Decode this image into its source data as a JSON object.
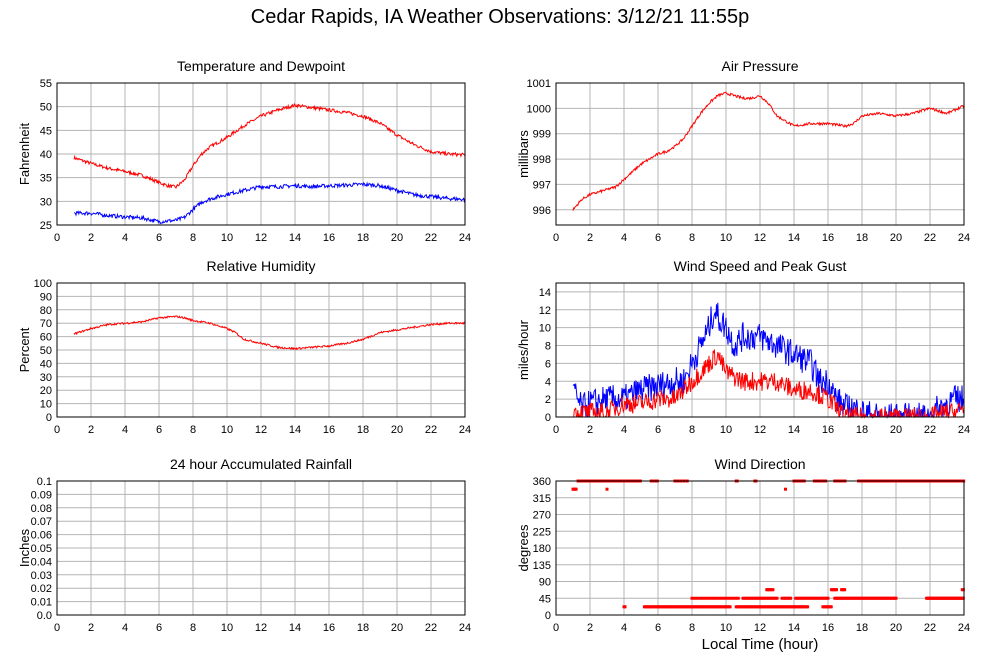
{
  "title": "Cedar Rapids, IA Weather Observations: 3/12/21 11:55p",
  "xaxis_label": "Local Time (hour)",
  "colors": {
    "red": "#ff0000",
    "blue": "#0000ff",
    "grid": "#b4b4b4"
  },
  "chart_data": [
    {
      "id": "temp",
      "type": "line",
      "title": "Temperature and Dewpoint",
      "ylabel": "Fahrenheit",
      "xlim": [
        0,
        24
      ],
      "ylim": [
        25,
        55
      ],
      "xticks": [
        2,
        4,
        6,
        8,
        10,
        12,
        14,
        16,
        18,
        20,
        22,
        24
      ],
      "yticks": [
        25,
        30,
        35,
        40,
        45,
        50,
        55
      ],
      "grid": true,
      "series": [
        {
          "color": "red",
          "noise": 0.35,
          "x": [
            1,
            2,
            3,
            4,
            5,
            6,
            6.5,
            7,
            7.5,
            8,
            8.5,
            9,
            10,
            11,
            12,
            13,
            14,
            15,
            16,
            17,
            18,
            19,
            20,
            21,
            22,
            23,
            24
          ],
          "y": [
            39.2,
            38,
            37,
            36.3,
            35.5,
            34,
            33.3,
            33,
            34.5,
            37.5,
            40,
            41.5,
            43.5,
            46,
            48,
            49.3,
            50.3,
            49.8,
            49.3,
            48.8,
            48,
            46.5,
            44,
            42,
            40.5,
            40,
            39.8
          ]
        },
        {
          "color": "blue",
          "noise": 0.4,
          "x": [
            1,
            2,
            3,
            4,
            5,
            6,
            7,
            7.5,
            8,
            8.5,
            9,
            10,
            11,
            12,
            13,
            14,
            15,
            16,
            17,
            18,
            19,
            20,
            21,
            22,
            23,
            24
          ],
          "y": [
            27.5,
            27.5,
            27,
            26.7,
            26.5,
            25.7,
            26,
            26.6,
            28.3,
            29.8,
            30.5,
            31.5,
            32.3,
            33.1,
            33.1,
            33.3,
            33.1,
            33.3,
            33.4,
            33.6,
            33.3,
            32.3,
            31.4,
            31,
            30.6,
            30.4
          ]
        }
      ]
    },
    {
      "id": "pressure",
      "type": "line",
      "title": "Air Pressure",
      "ylabel": "millibars",
      "xlim": [
        0,
        24
      ],
      "ylim": [
        995.4,
        1001
      ],
      "xticks": [
        2,
        4,
        6,
        8,
        10,
        12,
        14,
        16,
        18,
        20,
        22,
        24
      ],
      "yticks": [
        996,
        997,
        998,
        999,
        1000,
        1001
      ],
      "grid": true,
      "series": [
        {
          "color": "red",
          "noise": 0.05,
          "x": [
            1,
            1.5,
            2,
            3,
            3.5,
            4,
            4.5,
            5,
            6,
            6.5,
            7,
            7.5,
            8,
            8.5,
            9,
            9.5,
            10,
            10.5,
            11,
            11.5,
            12,
            12.5,
            13,
            13.5,
            14,
            15,
            16,
            17,
            17.5,
            18,
            19,
            20,
            21,
            22,
            22.5,
            23,
            24
          ],
          "y": [
            996,
            996.4,
            996.6,
            996.8,
            996.9,
            997.2,
            997.5,
            997.8,
            998.2,
            998.3,
            998.5,
            998.8,
            999.3,
            999.8,
            1000.2,
            1000.5,
            1000.6,
            1000.5,
            1000.4,
            1000.4,
            1000.5,
            1000.2,
            999.7,
            999.5,
            999.3,
            999.4,
            999.4,
            999.3,
            999.4,
            999.7,
            999.8,
            999.7,
            999.8,
            1000,
            999.9,
            999.8,
            1000.1
          ]
        }
      ]
    },
    {
      "id": "humidity",
      "type": "line",
      "title": "Relative Humidity",
      "ylabel": "Percent",
      "xlim": [
        0,
        24
      ],
      "ylim": [
        0,
        100
      ],
      "xticks": [
        2,
        4,
        6,
        8,
        10,
        12,
        14,
        16,
        18,
        20,
        22,
        24
      ],
      "yticks": [
        0,
        10,
        20,
        30,
        40,
        50,
        60,
        70,
        80,
        90,
        100
      ],
      "grid": true,
      "series": [
        {
          "color": "red",
          "noise": 0.7,
          "x": [
            1,
            2,
            3,
            4,
            5,
            6,
            7,
            7.5,
            8,
            9,
            10,
            10.5,
            11,
            12,
            13,
            14,
            15,
            16,
            17,
            18,
            19,
            20,
            21,
            22,
            23,
            24
          ],
          "y": [
            62,
            66,
            69,
            70,
            71,
            74,
            75,
            74,
            72,
            70,
            66,
            63,
            58,
            55,
            52,
            51,
            52,
            53,
            55,
            58,
            63,
            65,
            67,
            69,
            70,
            70
          ]
        }
      ]
    },
    {
      "id": "wind",
      "type": "line",
      "title": "Wind Speed and Peak Gust",
      "ylabel": "miles/hour",
      "xlim": [
        0,
        24
      ],
      "ylim": [
        0,
        15
      ],
      "xticks": [
        2,
        4,
        6,
        8,
        10,
        12,
        14,
        16,
        18,
        20,
        22,
        24
      ],
      "yticks": [
        0,
        2,
        4,
        6,
        8,
        10,
        12,
        14
      ],
      "grid": true,
      "series": [
        {
          "color": "blue",
          "jagged": 1.6,
          "x": [
            1,
            1.5,
            2,
            3,
            4,
            5,
            6,
            7,
            7.5,
            8,
            8.5,
            9,
            9.3,
            9.6,
            10,
            10.5,
            11,
            12,
            13,
            14,
            15,
            15.5,
            16,
            16.5,
            17,
            17.5,
            18,
            19,
            20,
            21,
            22,
            22.5,
            23,
            23.5,
            24
          ],
          "y": [
            3,
            1,
            1.5,
            2,
            2,
            3,
            3.5,
            4,
            4,
            6,
            8,
            10,
            12,
            11,
            10,
            8,
            9,
            9,
            8,
            7,
            6,
            4,
            4,
            2,
            1,
            1,
            0.5,
            0,
            0,
            0,
            0,
            1,
            1.5,
            2,
            2
          ]
        },
        {
          "color": "red",
          "jagged": 1.1,
          "x": [
            1,
            1.5,
            2,
            3,
            4,
            5,
            6,
            7,
            8,
            8.5,
            9,
            9.5,
            10,
            11,
            12,
            13,
            14,
            15,
            16,
            16.5,
            17,
            18,
            19,
            20,
            21,
            22,
            23,
            23.5,
            24
          ],
          "y": [
            0.5,
            0.5,
            0.5,
            0.5,
            1.5,
            1.5,
            2,
            2,
            4,
            5,
            6,
            7,
            5,
            4,
            4,
            4,
            3,
            3,
            2,
            1,
            0,
            0,
            0,
            0,
            0,
            0,
            0.5,
            0.5,
            1
          ]
        }
      ]
    },
    {
      "id": "rain",
      "type": "line",
      "title": "24 hour Accumulated Rainfall",
      "ylabel": "Inches",
      "xlim": [
        0,
        24
      ],
      "ylim": [
        0,
        0.1
      ],
      "xticks": [
        2,
        4,
        6,
        8,
        10,
        12,
        14,
        16,
        18,
        20,
        22,
        24
      ],
      "yticks": [
        0.0,
        0.01,
        0.02,
        0.03,
        0.04,
        0.05,
        0.06,
        0.07,
        0.08,
        0.09,
        0.1
      ],
      "ytick_labels": [
        "0.0",
        "0.01",
        "0.02",
        "0.03",
        "0.04",
        "0.05",
        "0.06",
        "0.07",
        "0.08",
        "0.09",
        "0.1"
      ],
      "grid": true,
      "series": [
        {
          "color": "red",
          "noise": 0,
          "x": [
            1,
            24
          ],
          "y": [
            0,
            0
          ]
        }
      ]
    },
    {
      "id": "direction",
      "type": "scatter",
      "title": "Wind Direction",
      "ylabel": "degrees",
      "xlim": [
        0,
        24
      ],
      "ylim": [
        0,
        360
      ],
      "xticks": [
        2,
        4,
        6,
        8,
        10,
        12,
        14,
        16,
        18,
        20,
        22,
        24
      ],
      "yticks": [
        0,
        45,
        90,
        135,
        180,
        225,
        270,
        315,
        360
      ],
      "grid": true,
      "series": [
        {
          "color": "red",
          "segments": [
            {
              "x0": 1.3,
              "x1": 5.0,
              "y": 360,
              "gap": 0.06
            },
            {
              "x0": 5.6,
              "x1": 6.0,
              "y": 360,
              "gap": 0.06
            },
            {
              "x0": 10.6,
              "x1": 10.7,
              "y": 360,
              "gap": 0.06
            },
            {
              "x0": 11.7,
              "x1": 11.8,
              "y": 360,
              "gap": 0.06
            },
            {
              "x0": 14.0,
              "x1": 14.6,
              "y": 360,
              "gap": 0.06
            },
            {
              "x0": 15.2,
              "x1": 15.9,
              "y": 360,
              "gap": 0.06
            },
            {
              "x0": 16.4,
              "x1": 17.0,
              "y": 360,
              "gap": 0.06
            },
            {
              "x0": 17.8,
              "x1": 24.0,
              "y": 360,
              "gap": 0.06
            },
            {
              "x0": 1.0,
              "x1": 1.2,
              "y": 338,
              "gap": 0.06
            },
            {
              "x0": 3.0,
              "x1": 3.05,
              "y": 338,
              "gap": 0.06
            },
            {
              "x0": 13.5,
              "x1": 13.55,
              "y": 338,
              "gap": 0.06
            },
            {
              "x0": 7.0,
              "x1": 7.8,
              "y": 360,
              "gap": 0.18
            },
            {
              "x0": 4.0,
              "x1": 4.1,
              "y": 22,
              "gap": 0.06
            },
            {
              "x0": 5.2,
              "x1": 10.3,
              "y": 22,
              "gap": 0.07
            },
            {
              "x0": 10.6,
              "x1": 14.8,
              "y": 22,
              "gap": 0.07
            },
            {
              "x0": 15.7,
              "x1": 16.2,
              "y": 22,
              "gap": 0.07
            },
            {
              "x0": 8.0,
              "x1": 10.8,
              "y": 45,
              "gap": 0.16
            },
            {
              "x0": 11.0,
              "x1": 13.0,
              "y": 45,
              "gap": 0.1
            },
            {
              "x0": 13.3,
              "x1": 13.8,
              "y": 45,
              "gap": 0.1
            },
            {
              "x0": 14.1,
              "x1": 16.0,
              "y": 45,
              "gap": 0.1
            },
            {
              "x0": 16.4,
              "x1": 20.0,
              "y": 45,
              "gap": 0.08
            },
            {
              "x0": 21.8,
              "x1": 24.0,
              "y": 45,
              "gap": 0.06
            },
            {
              "x0": 12.4,
              "x1": 12.8,
              "y": 68,
              "gap": 0.06
            },
            {
              "x0": 16.2,
              "x1": 16.5,
              "y": 68,
              "gap": 0.06
            },
            {
              "x0": 16.8,
              "x1": 17.0,
              "y": 68,
              "gap": 0.06
            },
            {
              "x0": 23.9,
              "x1": 24.0,
              "y": 68,
              "gap": 0.06
            }
          ]
        }
      ]
    }
  ]
}
